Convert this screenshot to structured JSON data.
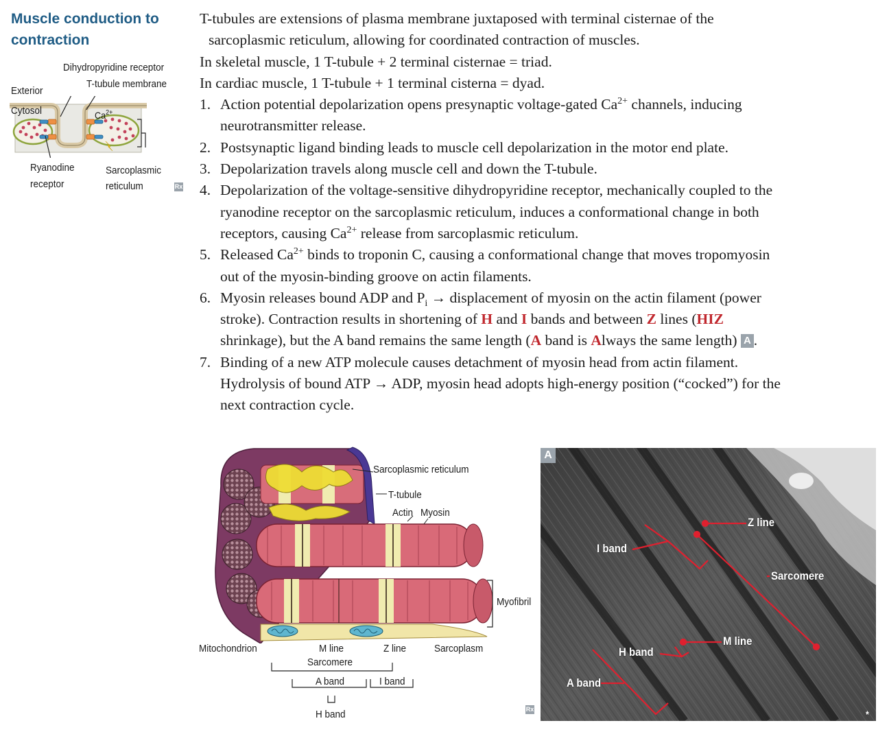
{
  "section": {
    "title_line1": "Muscle conduction to",
    "title_line2": "contraction"
  },
  "small_figure": {
    "labels": {
      "dihydropyridine": "Dihydropyridine receptor",
      "t_tubule_membrane": "T-tubule membrane",
      "exterior": "Exterior",
      "cytosol": "Cytosol",
      "ca": "Ca",
      "ca_charge": "2+",
      "ryanodine_1": "Ryanodine",
      "ryanodine_2": "receptor",
      "sarcoplasmic_1": "Sarcoplasmic",
      "sarcoplasmic_2": "reticulum"
    },
    "rx_badge": "Rx"
  },
  "body": {
    "intro_1a": "T-tubules are extensions of plasma membrane juxtaposed with terminal cisternae of the",
    "intro_1b": "sarcoplasmic reticulum, allowing for coordinated contraction of muscles.",
    "intro_2": "In skeletal muscle, 1 T-tubule + 2 terminal cisternae = triad.",
    "intro_3": "In cardiac muscle, 1 T-tubule + 1 terminal cisterna = dyad.",
    "steps": {
      "n1": "1.",
      "s1_a": "Action potential depolarization opens presynaptic voltage-gated Ca",
      "s1_sup": "2+",
      "s1_b": " channels, inducing",
      "s1_c": "neurotransmitter release.",
      "n2": "2.",
      "s2": "Postsynaptic ligand binding leads to muscle cell depolarization in the motor end plate.",
      "n3": "3.",
      "s3": "Depolarization travels along muscle cell and down the T-tubule.",
      "n4": "4.",
      "s4_a": "Depolarization of the voltage-sensitive dihydropyridine receptor, mechanically coupled to the",
      "s4_b": "ryanodine receptor on the sarcoplasmic reticulum, induces a conformational change in both",
      "s4_c1": "receptors, causing Ca",
      "s4_sup": "2+",
      "s4_c2": " release from sarcoplasmic reticulum.",
      "n5": "5.",
      "s5_a1": "Released Ca",
      "s5_sup": "2+",
      "s5_a2": " binds to troponin C, causing a conformational change that moves tropomyosin",
      "s5_b": "out of the myosin-binding groove on actin filaments.",
      "n6": "6.",
      "s6_a1": "Myosin releases bound ADP and P",
      "s6_sub": "i",
      "s6_a2": " → displacement of myosin on the actin filament (power",
      "s6_b1": "stroke). Contraction results in shortening of ",
      "s6_H": "H",
      "s6_b2": " and ",
      "s6_I": "I",
      "s6_b3": " bands and between ",
      "s6_Z": "Z",
      "s6_b4": " lines (",
      "s6_HIZ": "HIZ",
      "s6_c1": "shrinkage), but the A band remains the same length (",
      "s6_A1": "A",
      "s6_c2": " band is ",
      "s6_A2": "A",
      "s6_c3": "lways the same length) ",
      "s6_box": "A",
      "s6_c4": ".",
      "n7": "7.",
      "s7_a": "Binding of a new ATP molecule causes detachment of myosin head from actin filament.",
      "s7_b": "Hydrolysis of bound ATP → ADP, myosin head adopts high-energy position (“cocked”) for the",
      "s7_c": "next contraction cycle."
    }
  },
  "diagram": {
    "labels": {
      "sarcoplasmic_reticulum": "Sarcoplasmic reticulum",
      "t_tubule": "T-tubule",
      "actin": "Actin",
      "myosin": "Myosin",
      "myofibril": "Myofibril",
      "mitochondrion": "Mitochondrion",
      "m_line": "M line",
      "z_line": "Z line",
      "sarcoplasm": "Sarcoplasm",
      "sarcomere": "Sarcomere",
      "a_band": "A band",
      "i_band": "I band",
      "h_band": "H band"
    },
    "rx_badge": "Rx"
  },
  "micrograph": {
    "panel_letter": "A",
    "labels": {
      "z_line": "Z line",
      "i_band": "I band",
      "sarcomere": "Sarcomere",
      "m_line": "M line",
      "h_band": "H band",
      "a_band": "A band"
    },
    "corner_mark": "*"
  },
  "colors": {
    "title_blue": "#1f5c85",
    "highlight_red": "#c0272d",
    "annotation_red": "#e0202f",
    "badge_gray": "#9aa3ab"
  }
}
